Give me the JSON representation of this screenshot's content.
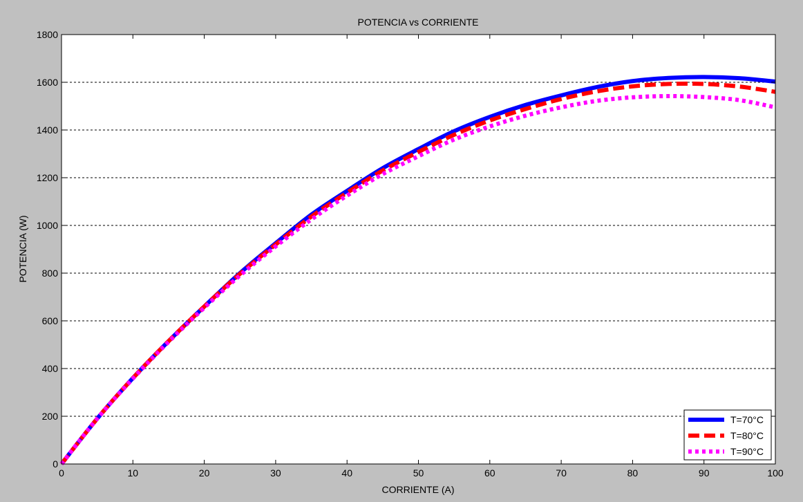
{
  "colors": {
    "figure_background": "#c0c0c0",
    "axes_background": "#ffffff",
    "axes_color": "#000000",
    "grid_color": "#000000"
  },
  "chart_data": {
    "type": "line",
    "title": "POTENCIA vs CORRIENTE",
    "xlabel": "CORRIENTE (A)",
    "ylabel": "POTENCIA (W)",
    "xlim": [
      0,
      100
    ],
    "ylim": [
      0,
      1800
    ],
    "xticks": [
      0,
      10,
      20,
      30,
      40,
      50,
      60,
      70,
      80,
      90,
      100
    ],
    "yticks": [
      0,
      200,
      400,
      600,
      800,
      1000,
      1200,
      1400,
      1600,
      1800
    ],
    "grid": "horizontal dashed",
    "legend_position": "bottom-right",
    "series": [
      {
        "name": "T=70°C",
        "color": "#0000ff",
        "style": "solid",
        "x": [
          0,
          5,
          10,
          15,
          20,
          25,
          30,
          35,
          40,
          45,
          50,
          55,
          60,
          65,
          70,
          75,
          80,
          85,
          90,
          95,
          100
        ],
        "y": [
          0,
          190,
          360,
          515,
          660,
          800,
          925,
          1045,
          1145,
          1240,
          1320,
          1395,
          1455,
          1505,
          1545,
          1580,
          1605,
          1618,
          1622,
          1617,
          1603
        ]
      },
      {
        "name": "T=80°C",
        "color": "#ff0000",
        "style": "dashed",
        "x": [
          0,
          5,
          10,
          15,
          20,
          25,
          30,
          35,
          40,
          45,
          50,
          55,
          60,
          65,
          70,
          75,
          80,
          85,
          90,
          95,
          100
        ],
        "y": [
          0,
          190,
          360,
          515,
          660,
          797,
          920,
          1037,
          1137,
          1230,
          1308,
          1380,
          1440,
          1488,
          1530,
          1562,
          1583,
          1593,
          1593,
          1582,
          1560
        ]
      },
      {
        "name": "T=90°C",
        "color": "#ff00ff",
        "style": "dotted",
        "x": [
          0,
          5,
          10,
          15,
          20,
          25,
          30,
          35,
          40,
          45,
          50,
          55,
          60,
          65,
          70,
          75,
          80,
          85,
          90,
          95,
          100
        ],
        "y": [
          0,
          190,
          358,
          512,
          655,
          790,
          912,
          1025,
          1125,
          1215,
          1290,
          1360,
          1415,
          1460,
          1495,
          1522,
          1537,
          1542,
          1538,
          1525,
          1495
        ]
      }
    ]
  }
}
